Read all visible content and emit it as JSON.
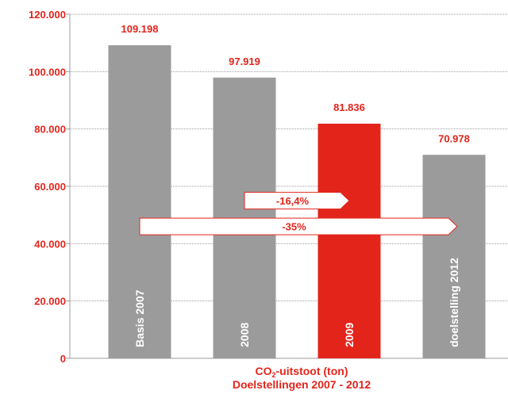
{
  "chart_data": {
    "type": "bar",
    "categories": [
      "Basis 2007",
      "2008",
      "2009",
      "doelstelling 2012"
    ],
    "values": [
      109198,
      97919,
      81836,
      70978
    ],
    "value_labels": [
      "109.198",
      "97.919",
      "81.836",
      "70.978"
    ],
    "highlight_index": 2,
    "ylim": [
      0,
      120000
    ],
    "yticks": [
      0,
      20000,
      40000,
      60000,
      80000,
      100000,
      120000
    ],
    "ytick_labels": [
      "0",
      "20.000",
      "40.000",
      "60.000",
      "80.000",
      "100.000",
      "120.000"
    ],
    "grid": true,
    "title_prefix": "CO",
    "title_sub": "2",
    "title_suffix": "-uitstoot (ton)",
    "subtitle": "Doelstellingen 2007 - 2012",
    "annotations": [
      {
        "text": "-16,4%",
        "y_value": 55000,
        "from_category": 1,
        "to_category": 2
      },
      {
        "text": "-35%",
        "y_value": 46000,
        "from_category": 0,
        "to_category": 3
      }
    ],
    "colors": {
      "bar": "#9b9b9b",
      "highlight": "#e3241b",
      "text": "#e3241b",
      "grid": "#9b9b9b",
      "axis": "#9b9b9b"
    }
  }
}
